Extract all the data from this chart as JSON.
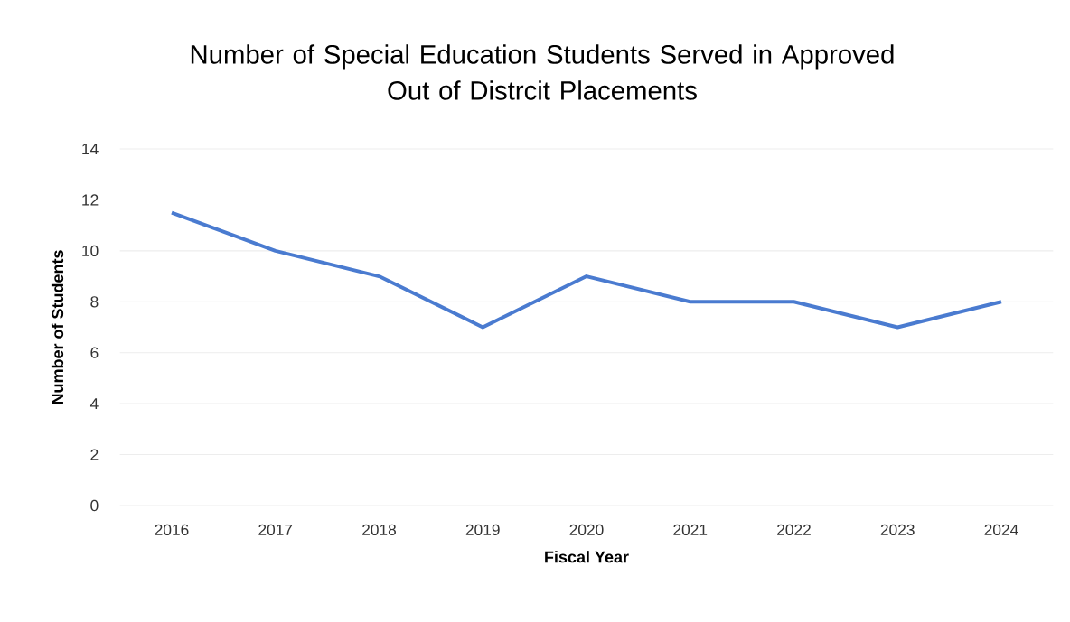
{
  "chart_data": {
    "type": "line",
    "title": "Number of Special Education Students Served in Approved\nOut of Distrcit Placements",
    "xlabel": "Fiscal Year",
    "ylabel": "Number of Students",
    "categories": [
      "2016",
      "2017",
      "2018",
      "2019",
      "2020",
      "2021",
      "2022",
      "2023",
      "2024"
    ],
    "series": [
      {
        "color": "#4a7bd0",
        "values": [
          11.5,
          10,
          9,
          7,
          9,
          8,
          8,
          7,
          8
        ]
      }
    ],
    "ylim": [
      0,
      14
    ],
    "yticks": [
      0,
      2,
      4,
      6,
      8,
      10,
      12,
      14
    ],
    "grid": "y",
    "marker": "none",
    "line_style": "solid"
  }
}
